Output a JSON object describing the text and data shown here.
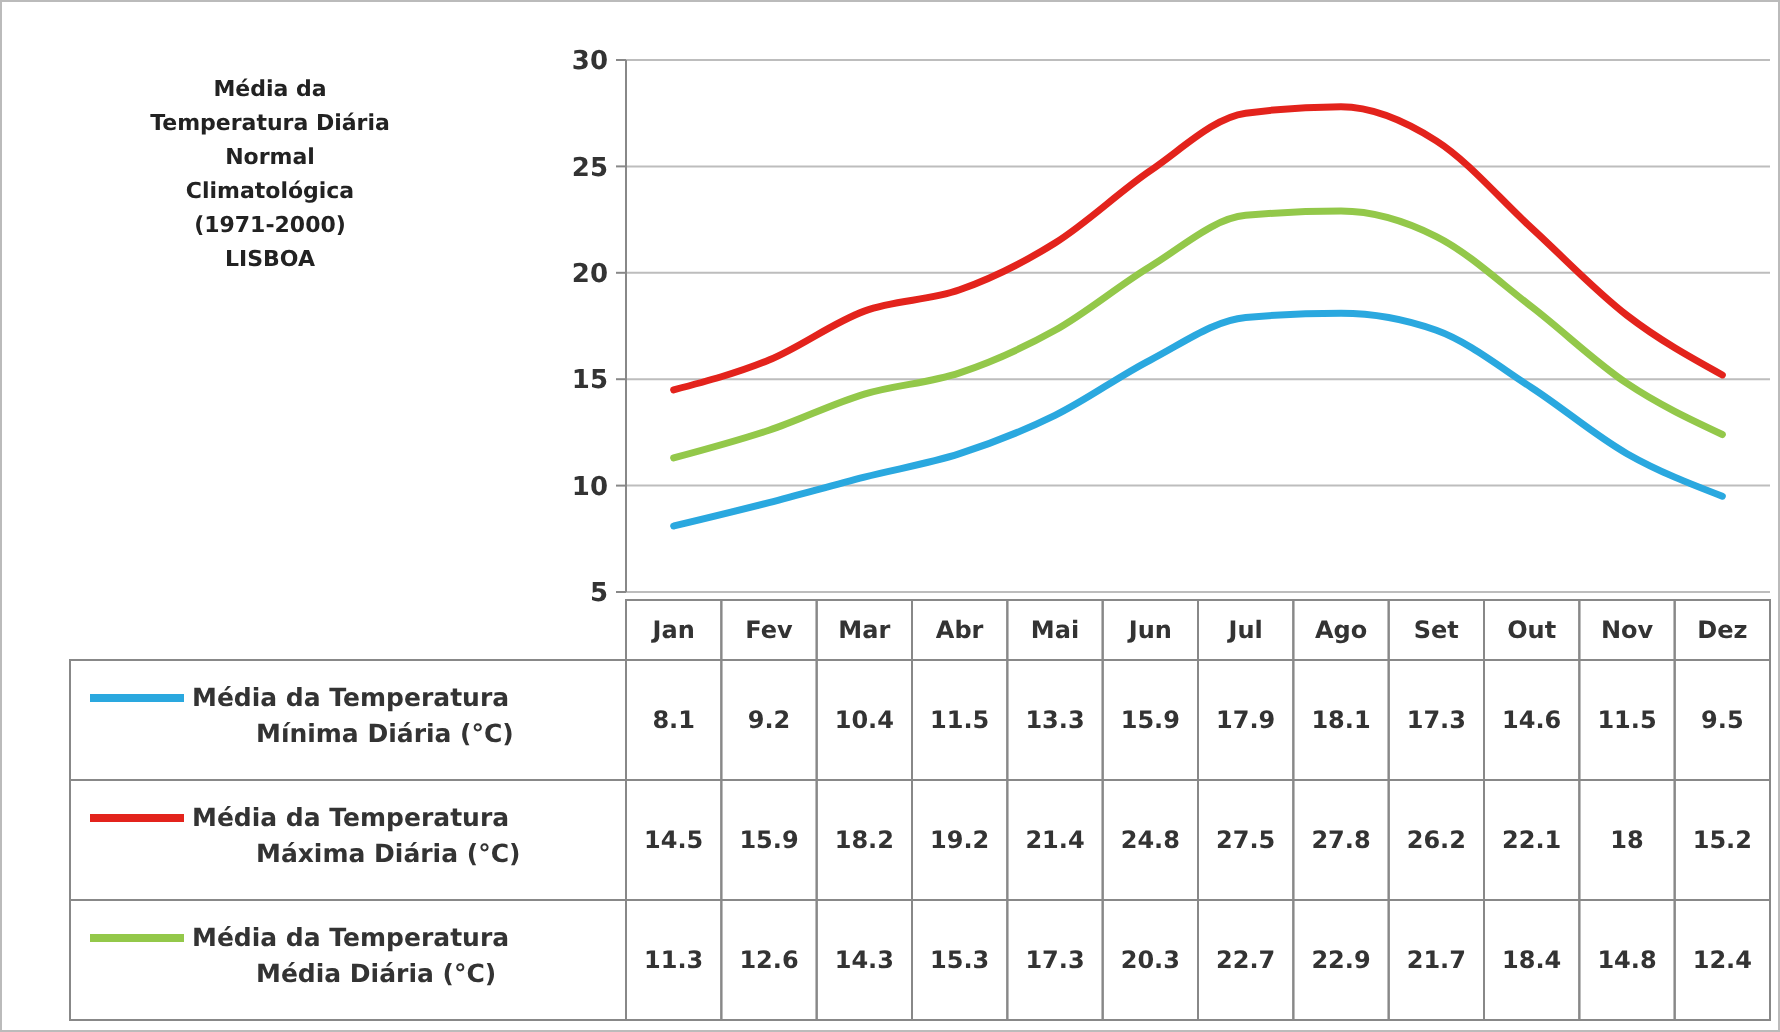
{
  "chart_data": {
    "type": "line",
    "title": "Média da\nTemperatura Diária\nNormal\nClimatológica\n(1971-2000)\nLISBOA",
    "categories": [
      "Jan",
      "Fev",
      "Mar",
      "Abr",
      "Mai",
      "Jun",
      "Jul",
      "Ago",
      "Set",
      "Out",
      "Nov",
      "Dez"
    ],
    "series": [
      {
        "name": "Média da Temperatura Mínima Diária (°C)",
        "color": "#2aa8df",
        "values": [
          8.1,
          9.2,
          10.4,
          11.5,
          13.3,
          15.9,
          17.9,
          18.1,
          17.3,
          14.6,
          11.5,
          9.5
        ]
      },
      {
        "name": "Média da Temperatura Máxima Diária (°C)",
        "color": "#e3231c",
        "values": [
          14.5,
          15.9,
          18.2,
          19.2,
          21.4,
          24.8,
          27.5,
          27.8,
          26.2,
          22.1,
          18,
          15.2
        ]
      },
      {
        "name": "Média da Temperatura Média Diária (°C)",
        "color": "#93c84a",
        "values": [
          11.3,
          12.6,
          14.3,
          15.3,
          17.3,
          20.3,
          22.7,
          22.9,
          21.7,
          18.4,
          14.8,
          12.4
        ]
      }
    ],
    "ylim": [
      5,
      30
    ],
    "yticks": [
      5,
      10,
      15,
      20,
      25,
      30
    ],
    "grid": "y",
    "legend": "bottom",
    "data_labels": true,
    "line_style": "solid",
    "marker": "none"
  }
}
